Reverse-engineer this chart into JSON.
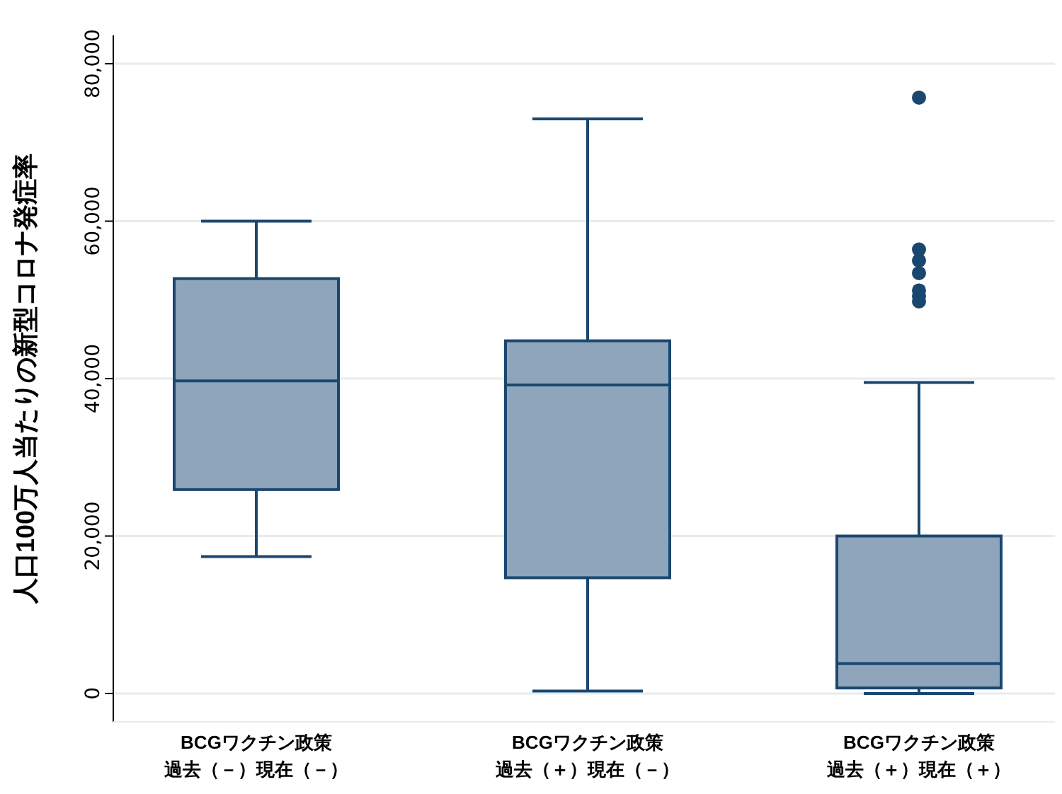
{
  "chart_data": {
    "type": "box",
    "ylabel": "人口100万人当たりの新型コロナ発症率",
    "categories": [
      "BCGワクチン政策過去（－）現在（－）",
      "BCGワクチン政策過去（＋）現在（－）",
      "BCGワクチン政策過去（＋）現在（＋）"
    ],
    "series": [
      {
        "color": "#8fa5bb",
        "boxes": [
          {
            "low": 17400,
            "q1": 25900,
            "median": 39700,
            "q3": 52700,
            "high": 60000
          },
          {
            "low": 300,
            "q1": 14700,
            "median": 39200,
            "q3": 44800,
            "high": 73000
          },
          {
            "low": 0,
            "q1": 700,
            "median": 3800,
            "q3": 20000,
            "high": 39500,
            "outliers": [
              75700,
              56400,
              55000,
              53400,
              51200,
              50500,
              49800
            ]
          }
        ]
      }
    ],
    "ylim": [
      -3600,
      83600
    ],
    "yticks": [
      {
        "value": 0,
        "label": "0"
      },
      {
        "value": 20000,
        "label": "20,000"
      },
      {
        "value": 40000,
        "label": "40,000"
      },
      {
        "value": 60000,
        "label": "60,000"
      },
      {
        "value": 80000,
        "label": "80,000"
      }
    ],
    "grid": "y"
  }
}
